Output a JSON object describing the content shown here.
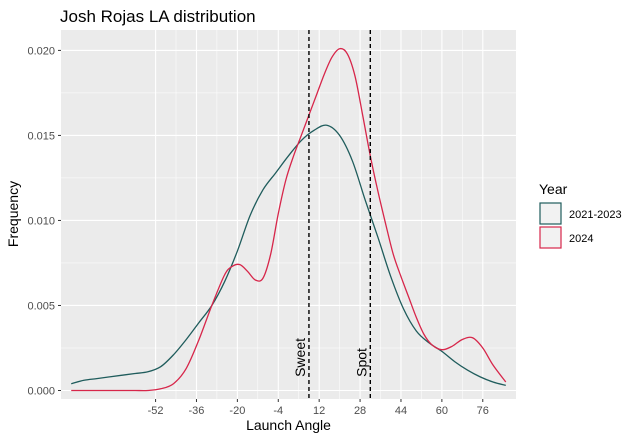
{
  "chart_data": {
    "type": "line",
    "title": "Josh Rojas LA distribution",
    "xlabel": "Launch Angle",
    "ylabel": "Frequency",
    "xlim": [
      -89,
      89
    ],
    "ylim": [
      -0.0005,
      0.0212
    ],
    "x_ticks": [
      -52,
      -36,
      -20,
      -4,
      12,
      28,
      44,
      60,
      76
    ],
    "y_ticks": [
      0.0,
      0.005,
      0.01,
      0.015,
      0.02
    ],
    "y_tick_labels": [
      "0.000",
      "0.005",
      "0.010",
      "0.015",
      "0.020"
    ],
    "legend": {
      "title": "Year",
      "position": "right"
    },
    "series": [
      {
        "name": "2021-2023",
        "color": "#1f5c5c",
        "x": [
          -85,
          -80,
          -75,
          -70,
          -65,
          -60,
          -55,
          -50,
          -45,
          -40,
          -35,
          -30,
          -25,
          -20,
          -15,
          -10,
          -5,
          0,
          5,
          10,
          15,
          20,
          25,
          30,
          35,
          40,
          45,
          50,
          55,
          60,
          65,
          70,
          75,
          80,
          85
        ],
        "y": [
          0.0004,
          0.0006,
          0.0007,
          0.0008,
          0.0009,
          0.001,
          0.0011,
          0.0014,
          0.0021,
          0.003,
          0.004,
          0.005,
          0.0064,
          0.0082,
          0.0103,
          0.0118,
          0.0128,
          0.0138,
          0.0147,
          0.0153,
          0.0156,
          0.015,
          0.0135,
          0.0112,
          0.009,
          0.0067,
          0.0048,
          0.0035,
          0.0028,
          0.0023,
          0.0017,
          0.0012,
          0.0008,
          0.0005,
          0.0003
        ]
      },
      {
        "name": "2024",
        "color": "#d7264a",
        "x": [
          -85,
          -80,
          -75,
          -70,
          -65,
          -60,
          -55,
          -50,
          -45,
          -40,
          -35,
          -30,
          -25,
          -22,
          -19,
          -16,
          -13,
          -10,
          -7,
          -4,
          -1,
          2,
          5,
          8,
          11,
          14,
          17,
          20,
          23,
          26,
          29,
          32,
          35,
          38,
          41,
          44,
          47,
          50,
          53,
          56,
          60,
          64,
          68,
          72,
          76,
          80,
          85
        ],
        "y": [
          0.0,
          0.0,
          0.0,
          0.0,
          0.0,
          0.0,
          0.0,
          0.0001,
          0.0004,
          0.0013,
          0.003,
          0.005,
          0.0068,
          0.0073,
          0.0074,
          0.007,
          0.0065,
          0.0066,
          0.008,
          0.0104,
          0.0124,
          0.0138,
          0.015,
          0.0162,
          0.0174,
          0.0186,
          0.0196,
          0.0201,
          0.0198,
          0.0185,
          0.0162,
          0.0138,
          0.0117,
          0.0098,
          0.008,
          0.0067,
          0.0055,
          0.0043,
          0.0033,
          0.0027,
          0.0024,
          0.0026,
          0.003,
          0.0031,
          0.0025,
          0.0015,
          0.0005
        ]
      }
    ],
    "annotations": [
      {
        "x": 8,
        "label": "Sweet",
        "style": "dashed"
      },
      {
        "x": 32,
        "label": "Spot",
        "style": "dashed"
      }
    ]
  }
}
